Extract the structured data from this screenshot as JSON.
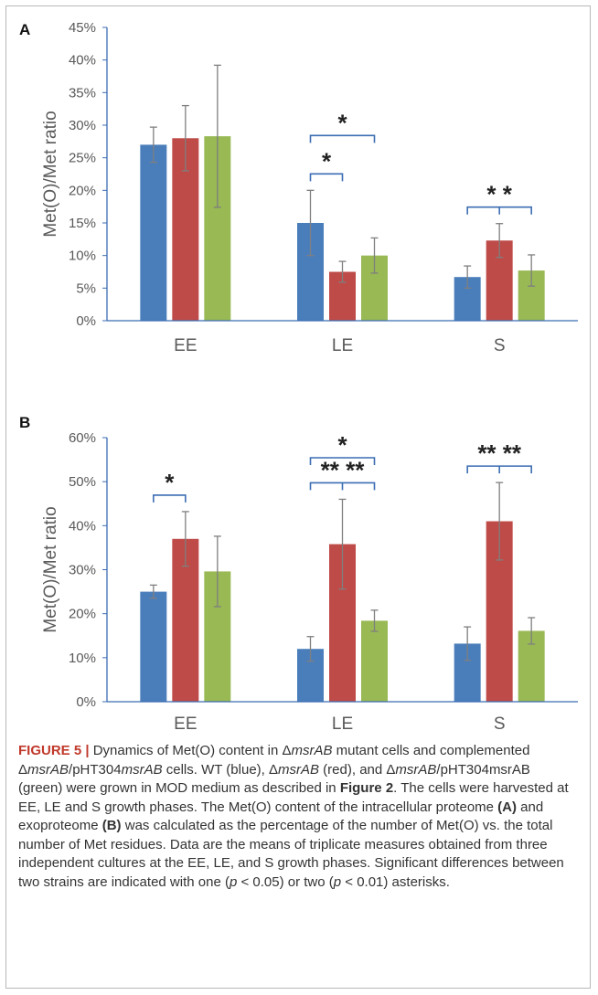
{
  "colors": {
    "wt": "#4a7ebb",
    "mutant": "#be4b48",
    "complemented": "#98b954",
    "axis": "#3b6db3",
    "error": "#7f7f7f",
    "label": "#595959",
    "star": "#222222"
  },
  "chart_data": [
    {
      "panel": "A",
      "type": "bar",
      "ylabel": "Met(O)/Met ratio",
      "ylim": [
        0,
        45
      ],
      "yticks": [
        "0%",
        "5%",
        "10%",
        "15%",
        "20%",
        "25%",
        "30%",
        "35%",
        "40%",
        "45%"
      ],
      "categories": [
        "EE",
        "LE",
        "S"
      ],
      "grid": false,
      "series": [
        {
          "values": [
            27,
            15,
            6.7
          ],
          "errors": [
            2.7,
            5,
            1.7
          ],
          "color": "#4a7ebb"
        },
        {
          "values": [
            28,
            7.5,
            12.3
          ],
          "errors": [
            5,
            1.6,
            2.6
          ],
          "color": "#be4b48"
        },
        {
          "values": [
            28.3,
            10,
            7.7
          ],
          "errors": [
            10.9,
            2.7,
            2.4
          ],
          "color": "#98b954"
        }
      ],
      "annotations": [
        {
          "text": "*",
          "category": "LE",
          "from": 0,
          "to": 1,
          "level": 1,
          "style": "simple"
        },
        {
          "text": "*",
          "category": "LE",
          "from": 0,
          "to": 2,
          "level": 2,
          "style": "simple"
        },
        {
          "text": "* *",
          "category": "S",
          "from": 0,
          "to": 2,
          "level": 1,
          "style": "double"
        }
      ]
    },
    {
      "panel": "B",
      "type": "bar",
      "ylabel": "Met(O)/Met ratio",
      "ylim": [
        0,
        60
      ],
      "yticks": [
        "0%",
        "10%",
        "20%",
        "30%",
        "40%",
        "50%",
        "60%"
      ],
      "categories": [
        "EE",
        "LE",
        "S"
      ],
      "grid": false,
      "series": [
        {
          "values": [
            25,
            12,
            13.2
          ],
          "errors": [
            1.5,
            2.8,
            3.8
          ],
          "color": "#4a7ebb"
        },
        {
          "values": [
            37,
            35.8,
            41
          ],
          "errors": [
            6.2,
            10.2,
            8.8
          ],
          "color": "#be4b48"
        },
        {
          "values": [
            29.6,
            18.4,
            16.1
          ],
          "errors": [
            8,
            2.4,
            3
          ],
          "color": "#98b954"
        }
      ],
      "annotations": [
        {
          "text": "*",
          "category": "EE",
          "from": 0,
          "to": 1,
          "level": 1,
          "style": "simple"
        },
        {
          "text": "** **",
          "category": "LE",
          "from": 0,
          "to": 2,
          "level": 1,
          "style": "double"
        },
        {
          "text": "*",
          "category": "LE",
          "from": 0,
          "to": 2,
          "level": 2,
          "style": "simple"
        },
        {
          "text": "** **",
          "category": "S",
          "from": 0,
          "to": 2,
          "level": 1,
          "style": "double"
        }
      ]
    }
  ],
  "caption": {
    "label": "FIGURE 5 |",
    "text_html": " Dynamics of Met(O) content in Δ<i>msrAB</i> mutant cells and complemented Δ<i>msrAB</i>/pHT304<i>msrAB</i> cells. WT (blue), Δ<i>msrAB</i> (red), and Δ<i>msrAB</i>/pHT304msrAB (green) were grown in MOD medium as described in <b>Figure 2</b>. The cells were harvested at EE, LE and S growth phases. The Met(O) content of the intracellular proteome <b>(A)</b> and exoproteome <b>(B)</b> was calculated as the percentage of the number of Met(O) vs. the total number of Met residues. Data are the means of triplicate measures obtained from three independent cultures at the EE, LE, and S growth phases. Significant differences between two strains are indicated with one (<i>p</i> &lt; 0.05) or two (<i>p</i> &lt; 0.01) asterisks."
  }
}
